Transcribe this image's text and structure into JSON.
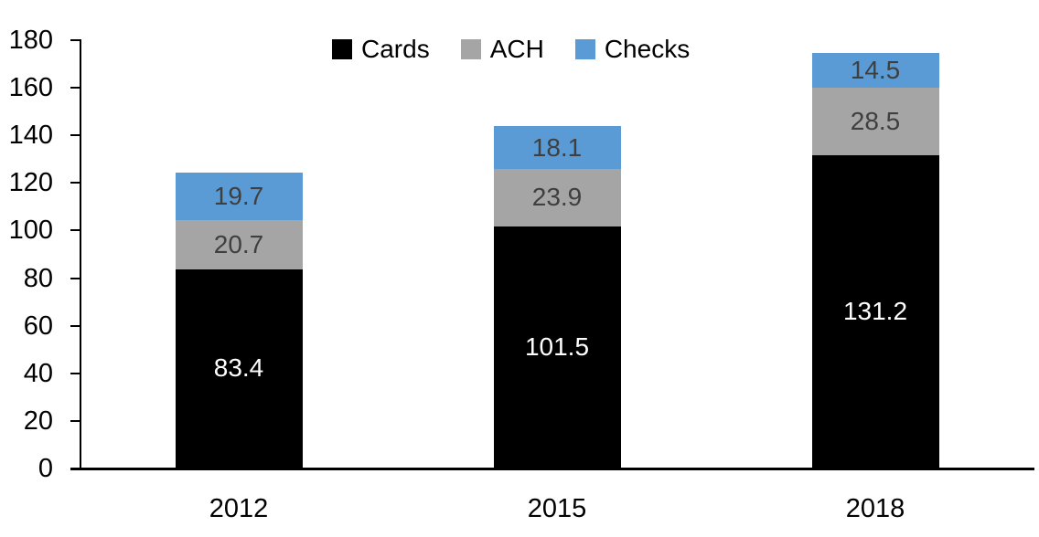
{
  "chart_data": {
    "type": "bar",
    "stacked": true,
    "title": "",
    "categories": [
      "2012",
      "2015",
      "2018"
    ],
    "series": [
      {
        "name": "Cards",
        "color": "#000000",
        "label_color": "#ffffff",
        "values": [
          83.4,
          101.5,
          131.2
        ]
      },
      {
        "name": "ACH",
        "color": "#a5a5a5",
        "label_color": "#3f3f3f",
        "values": [
          20.7,
          23.9,
          28.5
        ]
      },
      {
        "name": "Checks",
        "color": "#5b9bd5",
        "label_color": "#3f3f3f",
        "values": [
          19.7,
          18.1,
          14.5
        ]
      }
    ],
    "ylim": [
      0,
      180
    ],
    "ytick_step": 20,
    "yticks": [
      0,
      20,
      40,
      60,
      80,
      100,
      120,
      140,
      160,
      180
    ],
    "xlabel": "",
    "ylabel": "",
    "grid": false,
    "legend": {
      "position": "top",
      "entries": [
        "Cards",
        "ACH",
        "Checks"
      ]
    },
    "axis_color": "#000000",
    "background": "#ffffff"
  }
}
